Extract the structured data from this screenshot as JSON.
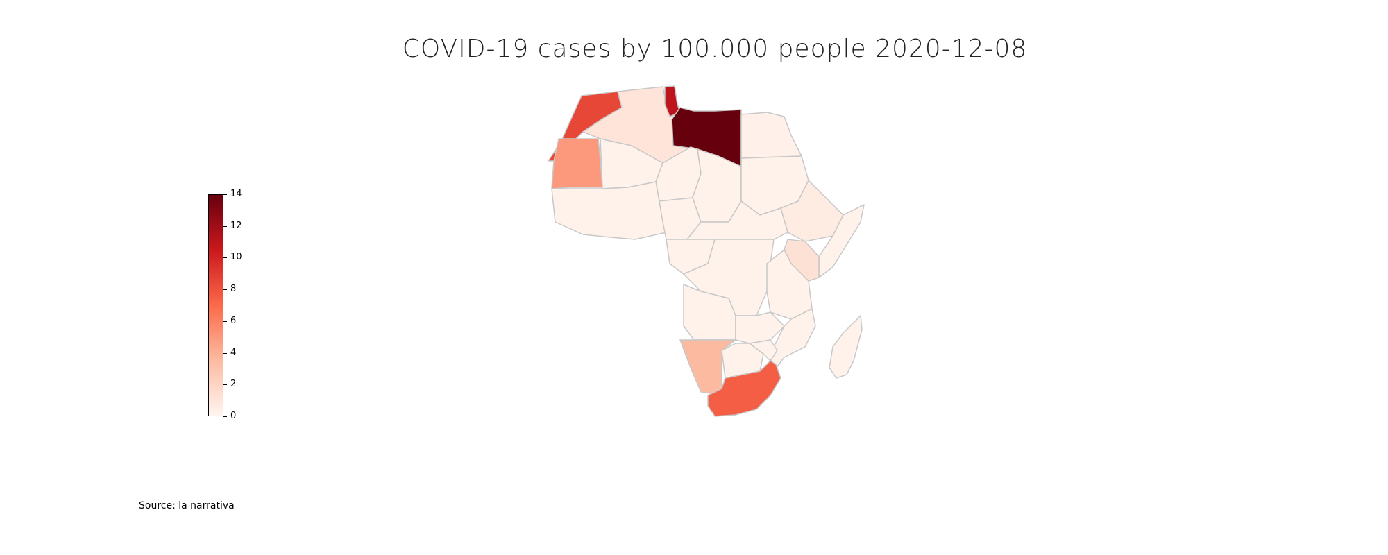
{
  "title": "COVID-19 cases by 100.000 people 2020-12-08",
  "source": "Source: la narrativa",
  "colorbar": {
    "min": 0,
    "max": 14,
    "ticks": [
      "0",
      "2",
      "4",
      "6",
      "8",
      "10",
      "12",
      "14"
    ]
  },
  "colors": {
    "border": "#c8c8c8",
    "low": "#fff5f0",
    "high": "#67000d"
  },
  "chart_data": {
    "type": "choropleth",
    "region": "Africa",
    "values": {
      "Libya": 14,
      "Tunisia": 11,
      "Morocco": 8.5,
      "South Africa": 7.5,
      "Mauritania": 5,
      "Namibia": 3.5,
      "Kenya": 1.2,
      "Algeria": 1,
      "Ethiopia": 0.6,
      "Egypt": 0.3,
      "Other": 0.2
    }
  }
}
